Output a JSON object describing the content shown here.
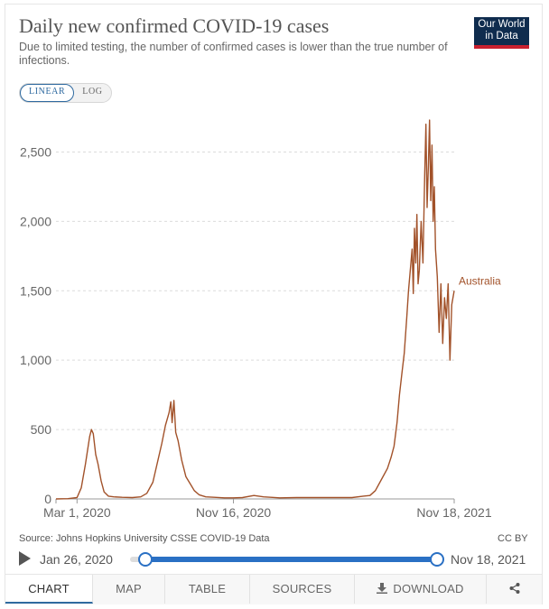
{
  "header": {
    "title": "Daily new confirmed COVID-19 cases",
    "subtitle": "Due to limited testing, the number of confirmed cases is lower than the true number of infections.",
    "logo_line1": "Our World",
    "logo_line2": "in Data"
  },
  "scale_toggle": {
    "linear": "LINEAR",
    "log": "LOG",
    "selected": "LINEAR"
  },
  "chart_data": {
    "type": "line",
    "title": "Daily new confirmed COVID-19 cases",
    "ylim": [
      0,
      2750
    ],
    "yticks": [
      0,
      500,
      1000,
      1500,
      2000,
      2500
    ],
    "ytick_labels": [
      "0",
      "500",
      "1,000",
      "1,500",
      "2,000",
      "2,500"
    ],
    "x_start": "2020-01-26",
    "x_end": "2021-11-18",
    "xtick_labels": [
      {
        "date": "2020-03-01",
        "label": "Mar 1, 2020"
      },
      {
        "date": "2020-11-16",
        "label": "Nov 16, 2020"
      },
      {
        "date": "2021-11-18",
        "label": "Nov 18, 2021"
      }
    ],
    "grid": "horizontal dashed",
    "series": [
      {
        "name": "Australia",
        "color": "#a2522a",
        "points": [
          [
            "2020-01-26",
            0
          ],
          [
            "2020-02-15",
            2
          ],
          [
            "2020-03-01",
            10
          ],
          [
            "2020-03-08",
            80
          ],
          [
            "2020-03-15",
            250
          ],
          [
            "2020-03-22",
            450
          ],
          [
            "2020-03-25",
            500
          ],
          [
            "2020-03-28",
            470
          ],
          [
            "2020-04-01",
            320
          ],
          [
            "2020-04-05",
            250
          ],
          [
            "2020-04-10",
            130
          ],
          [
            "2020-04-15",
            50
          ],
          [
            "2020-04-22",
            20
          ],
          [
            "2020-05-01",
            15
          ],
          [
            "2020-05-15",
            12
          ],
          [
            "2020-06-01",
            10
          ],
          [
            "2020-06-15",
            15
          ],
          [
            "2020-06-25",
            40
          ],
          [
            "2020-07-05",
            120
          ],
          [
            "2020-07-12",
            250
          ],
          [
            "2020-07-20",
            400
          ],
          [
            "2020-07-26",
            530
          ],
          [
            "2020-08-01",
            620
          ],
          [
            "2020-08-04",
            700
          ],
          [
            "2020-08-06",
            550
          ],
          [
            "2020-08-09",
            710
          ],
          [
            "2020-08-12",
            480
          ],
          [
            "2020-08-16",
            420
          ],
          [
            "2020-08-22",
            280
          ],
          [
            "2020-08-29",
            160
          ],
          [
            "2020-09-05",
            110
          ],
          [
            "2020-09-12",
            60
          ],
          [
            "2020-09-20",
            30
          ],
          [
            "2020-10-01",
            15
          ],
          [
            "2020-10-15",
            12
          ],
          [
            "2020-11-01",
            8
          ],
          [
            "2020-11-16",
            8
          ],
          [
            "2020-12-01",
            10
          ],
          [
            "2020-12-20",
            25
          ],
          [
            "2021-01-05",
            15
          ],
          [
            "2021-02-01",
            8
          ],
          [
            "2021-03-01",
            10
          ],
          [
            "2021-04-01",
            10
          ],
          [
            "2021-05-01",
            10
          ],
          [
            "2021-06-01",
            10
          ],
          [
            "2021-06-20",
            20
          ],
          [
            "2021-07-01",
            25
          ],
          [
            "2021-07-10",
            60
          ],
          [
            "2021-07-20",
            140
          ],
          [
            "2021-07-30",
            220
          ],
          [
            "2021-08-05",
            300
          ],
          [
            "2021-08-10",
            380
          ],
          [
            "2021-08-15",
            550
          ],
          [
            "2021-08-19",
            750
          ],
          [
            "2021-08-23",
            900
          ],
          [
            "2021-08-27",
            1050
          ],
          [
            "2021-08-31",
            1300
          ],
          [
            "2021-09-03",
            1500
          ],
          [
            "2021-09-06",
            1650
          ],
          [
            "2021-09-09",
            1800
          ],
          [
            "2021-09-11",
            1480
          ],
          [
            "2021-09-13",
            1950
          ],
          [
            "2021-09-15",
            1700
          ],
          [
            "2021-09-17",
            2050
          ],
          [
            "2021-09-19",
            1550
          ],
          [
            "2021-09-21",
            1650
          ],
          [
            "2021-09-24",
            2000
          ],
          [
            "2021-09-27",
            1700
          ],
          [
            "2021-09-30",
            2350
          ],
          [
            "2021-10-02",
            2700
          ],
          [
            "2021-10-04",
            2100
          ],
          [
            "2021-10-06",
            2400
          ],
          [
            "2021-10-08",
            2730
          ],
          [
            "2021-10-10",
            2150
          ],
          [
            "2021-10-12",
            2550
          ],
          [
            "2021-10-14",
            2000
          ],
          [
            "2021-10-16",
            2250
          ],
          [
            "2021-10-18",
            1800
          ],
          [
            "2021-10-21",
            1600
          ],
          [
            "2021-10-24",
            1200
          ],
          [
            "2021-10-27",
            1550
          ],
          [
            "2021-10-30",
            1120
          ],
          [
            "2021-11-02",
            1450
          ],
          [
            "2021-11-05",
            1300
          ],
          [
            "2021-11-08",
            1550
          ],
          [
            "2021-11-11",
            1000
          ],
          [
            "2021-11-14",
            1400
          ],
          [
            "2021-11-18",
            1500
          ]
        ]
      }
    ]
  },
  "footer": {
    "source": "Source: Johns Hopkins University CSSE COVID-19 Data",
    "license": "CC BY"
  },
  "timeline": {
    "start_label": "Jan 26, 2020",
    "end_label": "Nov 18, 2021"
  },
  "tabs": [
    {
      "label": "CHART",
      "active": true
    },
    {
      "label": "MAP"
    },
    {
      "label": "TABLE"
    },
    {
      "label": "SOURCES"
    },
    {
      "label": "DOWNLOAD"
    }
  ]
}
